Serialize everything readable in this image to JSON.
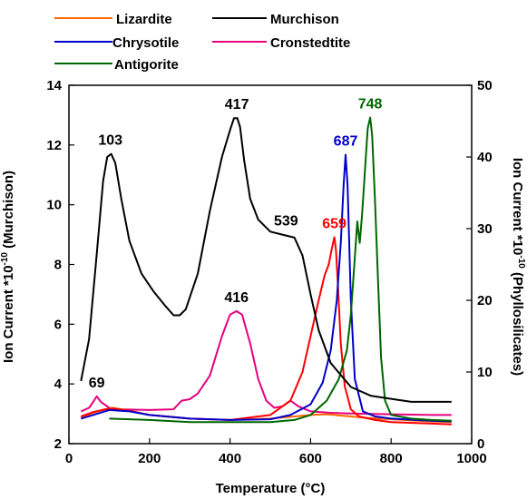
{
  "chart_data": {
    "type": "line",
    "xlabel": "Temperature (°C)",
    "ylabel_left": "Ion Current *10",
    "ylabel_left_sup": "-10",
    "ylabel_left_suffix": " (Murchison)",
    "ylabel_right": "Ion Current *10",
    "ylabel_right_sup": "-10",
    "ylabel_right_suffix": " (Phyllosilicates)",
    "xlim": [
      0,
      1000
    ],
    "ylim_left": [
      2,
      14
    ],
    "ylim_right": [
      0,
      50
    ],
    "x_ticks": [
      "0",
      "200",
      "400",
      "600",
      "800",
      "1000"
    ],
    "y_left_ticks": [
      "2",
      "4",
      "6",
      "8",
      "10",
      "12",
      "14"
    ],
    "y_right_ticks": [
      "0",
      "10",
      "20",
      "30",
      "40",
      "50"
    ],
    "grid": false,
    "legend_position": "top",
    "series": [
      {
        "name": "Lizardite",
        "axis": "right",
        "color": "#ff6600",
        "x": [
          30,
          60,
          90,
          110,
          140,
          200,
          300,
          400,
          500,
          560,
          600,
          640,
          660,
          680,
          700,
          740,
          800,
          900,
          950
        ],
        "y": [
          3.6,
          4.3,
          4.8,
          5.0,
          4.7,
          4.0,
          3.5,
          3.3,
          3.5,
          3.8,
          4.0,
          4.1,
          4.0,
          3.9,
          3.8,
          3.6,
          3.4,
          3.1,
          3.0
        ]
      },
      {
        "name": "Murchison",
        "axis": "left",
        "color": "#000000",
        "x": [
          30,
          50,
          70,
          85,
          95,
          105,
          115,
          130,
          150,
          180,
          210,
          240,
          260,
          275,
          290,
          320,
          350,
          380,
          400,
          410,
          418,
          425,
          435,
          450,
          470,
          500,
          530,
          560,
          580,
          600,
          620,
          650,
          700,
          750,
          800,
          850,
          900,
          950
        ],
        "y": [
          4.1,
          5.5,
          8.5,
          10.8,
          11.6,
          11.7,
          11.4,
          10.2,
          8.8,
          7.7,
          7.1,
          6.6,
          6.3,
          6.3,
          6.5,
          7.7,
          9.8,
          11.6,
          12.5,
          12.9,
          12.9,
          12.6,
          11.5,
          10.2,
          9.5,
          9.1,
          9.0,
          8.9,
          8.3,
          7.0,
          5.8,
          4.7,
          3.9,
          3.6,
          3.5,
          3.4,
          3.4,
          3.4
        ]
      },
      {
        "name": "Chrysotile",
        "axis": "right",
        "color": "#0000cc",
        "x": [
          30,
          60,
          100,
          150,
          200,
          300,
          400,
          500,
          550,
          600,
          630,
          650,
          665,
          675,
          682,
          687,
          692,
          700,
          710,
          730,
          760,
          800,
          900,
          950
        ],
        "y": [
          3.5,
          4.0,
          4.7,
          4.5,
          4.0,
          3.5,
          3.3,
          3.4,
          4.0,
          5.5,
          8.5,
          13.0,
          20.0,
          28.0,
          36.0,
          40.3,
          36.0,
          20.0,
          9.0,
          4.5,
          3.8,
          3.5,
          3.2,
          3.1
        ]
      },
      {
        "name": "Cronstedtite",
        "axis": "right",
        "color": "#e6007e",
        "x": [
          30,
          50,
          60,
          69,
          80,
          100,
          120,
          200,
          260,
          280,
          300,
          320,
          350,
          380,
          400,
          416,
          430,
          450,
          470,
          490,
          510,
          530,
          550,
          570,
          600,
          650,
          700,
          800,
          900,
          950
        ],
        "y": [
          4.5,
          5.0,
          5.8,
          6.6,
          5.8,
          5.0,
          4.8,
          4.7,
          4.8,
          6.0,
          6.2,
          7.0,
          9.5,
          15.0,
          18.0,
          18.5,
          18.0,
          14.0,
          9.0,
          6.0,
          5.0,
          5.2,
          6.0,
          5.2,
          4.5,
          4.3,
          4.2,
          4.1,
          4.0,
          4.0
        ]
      },
      {
        "name": "Antigorite",
        "axis": "right",
        "color": "#006600",
        "x": [
          100,
          200,
          300,
          400,
          500,
          560,
          600,
          640,
          670,
          690,
          700,
          710,
          716,
          722,
          728,
          735,
          742,
          748,
          753,
          760,
          768,
          775,
          785,
          800,
          850,
          900,
          950
        ],
        "y": [
          3.5,
          3.3,
          3.0,
          3.0,
          3.0,
          3.3,
          4.0,
          6.0,
          9.0,
          13.0,
          18.0,
          26.0,
          31.0,
          28.0,
          32.0,
          38.0,
          44.0,
          45.5,
          43.0,
          34.0,
          22.0,
          12.0,
          6.0,
          4.0,
          3.5,
          3.3,
          3.2
        ]
      },
      {
        "name": "",
        "axis": "right",
        "color": "#ff0000",
        "x": [
          30,
          60,
          90,
          110,
          150,
          200,
          300,
          400,
          500,
          550,
          580,
          600,
          620,
          635,
          645,
          652,
          659,
          663,
          668,
          675,
          685,
          700,
          720,
          760,
          800,
          900,
          950
        ],
        "y": [
          3.8,
          4.4,
          4.8,
          4.9,
          4.6,
          4.0,
          3.5,
          3.3,
          4.0,
          6.0,
          10.0,
          15.0,
          20.0,
          23.5,
          25.0,
          27.0,
          28.8,
          27.0,
          22.0,
          14.0,
          8.0,
          4.8,
          3.8,
          3.3,
          3.0,
          2.8,
          2.7
        ]
      }
    ],
    "annotations": [
      {
        "text": "103",
        "color": "#000000",
        "x": 103,
        "y": 11.7,
        "axis": "left"
      },
      {
        "text": "417",
        "color": "#000000",
        "x": 417,
        "y": 12.9,
        "axis": "left"
      },
      {
        "text": "539",
        "color": "#000000",
        "x": 539,
        "y": 9.0,
        "axis": "left"
      },
      {
        "text": "69",
        "color": "#000000",
        "x": 69,
        "y": 6.6,
        "axis": "right"
      },
      {
        "text": "416",
        "color": "#000000",
        "x": 416,
        "y": 18.5,
        "axis": "right"
      },
      {
        "text": "687",
        "color": "#0000cc",
        "x": 687,
        "y": 40.3,
        "axis": "right"
      },
      {
        "text": "659",
        "color": "#ff0000",
        "x": 659,
        "y": 28.8,
        "axis": "right"
      },
      {
        "text": "748",
        "color": "#006600",
        "x": 748,
        "y": 45.5,
        "axis": "right"
      }
    ]
  }
}
